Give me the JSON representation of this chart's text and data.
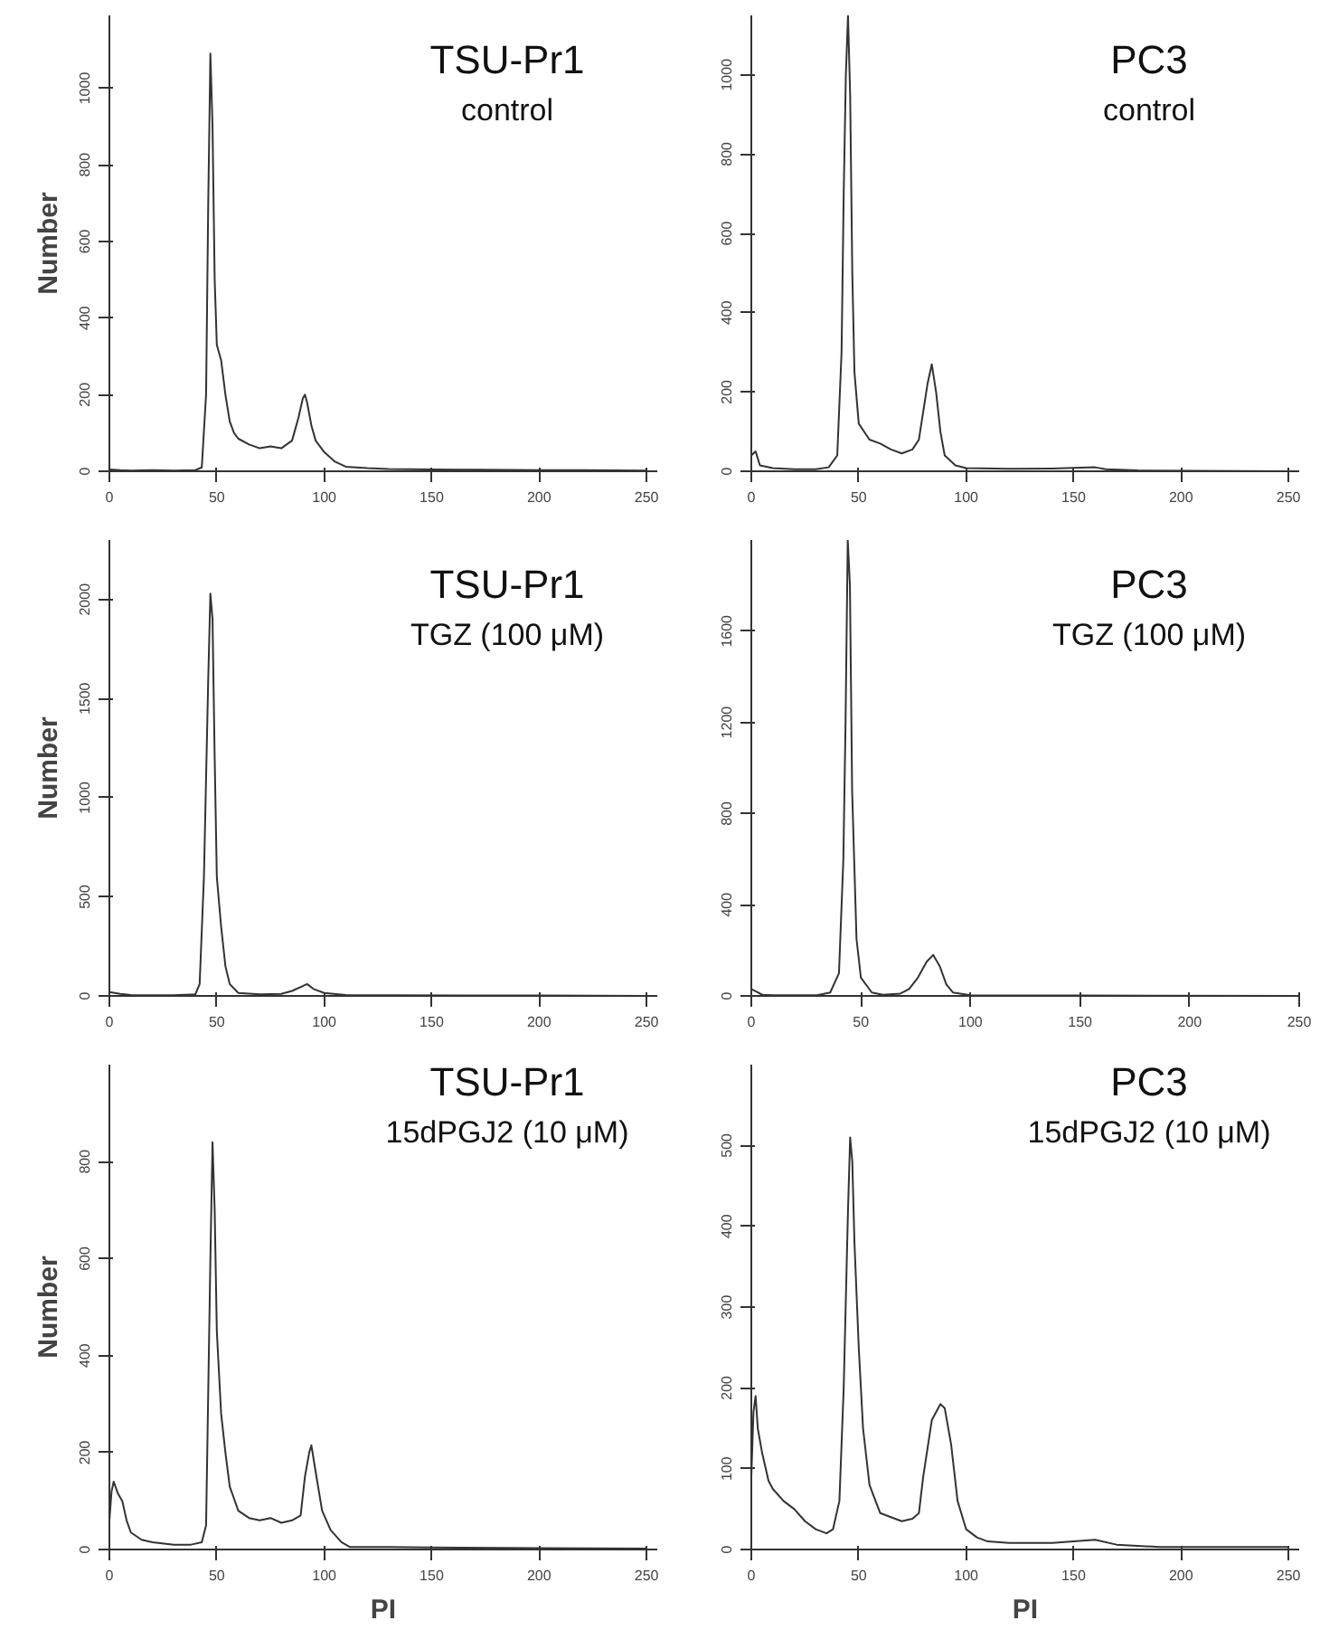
{
  "chart_data": [
    {
      "type": "line",
      "title": "TSU-Pr1",
      "subtitle": "control",
      "ylabel": "Number",
      "xlim": [
        0,
        255
      ],
      "ylim": [
        0,
        1190
      ],
      "xticks": [
        0,
        50,
        100,
        150,
        200,
        250
      ],
      "yticks": [
        0,
        200,
        400,
        600,
        800,
        1000
      ],
      "grid": false,
      "x": [
        0,
        5,
        10,
        20,
        30,
        40,
        43,
        45,
        46,
        47,
        48,
        49,
        50,
        52,
        54,
        56,
        58,
        60,
        65,
        70,
        75,
        80,
        85,
        88,
        90,
        91,
        92,
        94,
        96,
        100,
        105,
        110,
        120,
        130,
        150,
        170,
        200,
        220,
        250
      ],
      "series": [
        {
          "color": "#333333",
          "values": [
            5,
            3,
            2,
            3,
            2,
            3,
            10,
            200,
            700,
            1090,
            900,
            500,
            330,
            290,
            200,
            130,
            100,
            85,
            70,
            60,
            65,
            60,
            80,
            140,
            190,
            200,
            180,
            120,
            80,
            50,
            25,
            12,
            8,
            6,
            5,
            4,
            3,
            3,
            2
          ]
        }
      ]
    },
    {
      "type": "line",
      "title": "PC3",
      "subtitle": "control",
      "xlim": [
        0,
        255
      ],
      "ylim": [
        0,
        1150
      ],
      "xticks": [
        0,
        50,
        100,
        150,
        200,
        250
      ],
      "yticks": [
        0,
        200,
        400,
        600,
        800,
        1000
      ],
      "grid": false,
      "x": [
        0,
        2,
        4,
        10,
        20,
        30,
        36,
        40,
        42,
        43,
        44,
        45,
        46,
        47,
        48,
        50,
        55,
        60,
        65,
        70,
        75,
        78,
        80,
        82,
        84,
        86,
        88,
        90,
        95,
        100,
        120,
        140,
        160,
        165,
        180,
        250
      ],
      "series": [
        {
          "color": "#333333",
          "values": [
            40,
            50,
            15,
            8,
            5,
            5,
            10,
            40,
            300,
            700,
            1000,
            1150,
            950,
            500,
            250,
            120,
            80,
            70,
            55,
            45,
            55,
            80,
            150,
            220,
            270,
            200,
            100,
            40,
            15,
            8,
            6,
            7,
            10,
            5,
            2,
            0
          ]
        }
      ]
    },
    {
      "type": "line",
      "title": "TSU-Pr1",
      "subtitle": "TGZ (100 μM)",
      "ylabel": "Number",
      "xlim": [
        0,
        255
      ],
      "ylim": [
        0,
        2300
      ],
      "xticks": [
        0,
        50,
        100,
        150,
        200,
        250
      ],
      "yticks": [
        0,
        500,
        1000,
        1500,
        2000
      ],
      "grid": false,
      "x": [
        0,
        5,
        10,
        20,
        30,
        40,
        42,
        44,
        46,
        47,
        48,
        49,
        50,
        52,
        54,
        56,
        60,
        70,
        80,
        85,
        90,
        92,
        95,
        100,
        110,
        130,
        200,
        250
      ],
      "series": [
        {
          "color": "#333333",
          "values": [
            20,
            10,
            5,
            3,
            3,
            8,
            60,
            600,
            1600,
            2030,
            1900,
            1200,
            600,
            350,
            150,
            60,
            15,
            8,
            10,
            25,
            50,
            60,
            35,
            15,
            5,
            3,
            2,
            0
          ]
        }
      ]
    },
    {
      "type": "line",
      "title": "PC3",
      "subtitle": "TGZ (100 μM)",
      "xlim": [
        0,
        250
      ],
      "ylim": [
        0,
        2000
      ],
      "xticks": [
        0,
        50,
        100,
        150,
        200,
        250
      ],
      "yticks": [
        0,
        400,
        800,
        1200,
        1600
      ],
      "grid": false,
      "x": [
        0,
        2,
        5,
        10,
        30,
        36,
        40,
        42,
        43,
        44,
        45,
        46,
        48,
        50,
        55,
        60,
        68,
        72,
        76,
        80,
        83,
        86,
        89,
        92,
        100,
        150,
        250
      ],
      "series": [
        {
          "color": "#333333",
          "values": [
            30,
            20,
            5,
            3,
            3,
            15,
            100,
            600,
            1200,
            2000,
            1800,
            900,
            250,
            80,
            15,
            5,
            10,
            30,
            80,
            150,
            180,
            130,
            50,
            15,
            3,
            2,
            0
          ]
        }
      ]
    },
    {
      "type": "line",
      "title": "TSU-Pr1",
      "subtitle": "15dPGJ2 (10 μM)",
      "ylabel": "Number",
      "xlabel": "PI",
      "xlim": [
        0,
        255
      ],
      "ylim": [
        0,
        1000
      ],
      "xticks": [
        0,
        50,
        100,
        150,
        200,
        250
      ],
      "yticks": [
        0,
        200,
        400,
        600,
        800
      ],
      "grid": false,
      "x": [
        0,
        1,
        2,
        4,
        6,
        8,
        10,
        15,
        20,
        30,
        38,
        43,
        45,
        47,
        48,
        49,
        50,
        52,
        54,
        56,
        60,
        65,
        70,
        75,
        80,
        85,
        89,
        91,
        93,
        94,
        96,
        99,
        103,
        108,
        112,
        130,
        150,
        200,
        250
      ],
      "series": [
        {
          "color": "#333333",
          "values": [
            60,
            120,
            140,
            115,
            100,
            60,
            35,
            20,
            15,
            10,
            10,
            15,
            50,
            600,
            840,
            700,
            450,
            280,
            200,
            130,
            80,
            65,
            60,
            65,
            55,
            60,
            70,
            150,
            200,
            215,
            160,
            80,
            40,
            15,
            5,
            5,
            4,
            3,
            2
          ]
        }
      ]
    },
    {
      "type": "line",
      "title": "PC3",
      "subtitle": "15dPGJ2 (10 μM)",
      "xlabel": "PI",
      "xlim": [
        0,
        255
      ],
      "ylim": [
        0,
        600
      ],
      "xticks": [
        0,
        50,
        100,
        150,
        200,
        250
      ],
      "yticks": [
        0,
        100,
        200,
        300,
        400,
        500
      ],
      "grid": false,
      "x": [
        0,
        1,
        2,
        3,
        5,
        8,
        10,
        15,
        20,
        25,
        30,
        35,
        38,
        41,
        43,
        45,
        46,
        47,
        48,
        50,
        52,
        55,
        60,
        65,
        70,
        75,
        78,
        80,
        84,
        88,
        90,
        93,
        96,
        100,
        105,
        110,
        120,
        140,
        160,
        170,
        190,
        250
      ],
      "series": [
        {
          "color": "#333333",
          "values": [
            90,
            170,
            190,
            150,
            120,
            85,
            75,
            60,
            50,
            35,
            25,
            20,
            25,
            60,
            200,
            420,
            510,
            480,
            380,
            250,
            150,
            80,
            45,
            40,
            35,
            38,
            45,
            90,
            160,
            180,
            175,
            130,
            60,
            25,
            15,
            10,
            8,
            8,
            12,
            6,
            3,
            3
          ]
        }
      ]
    }
  ]
}
